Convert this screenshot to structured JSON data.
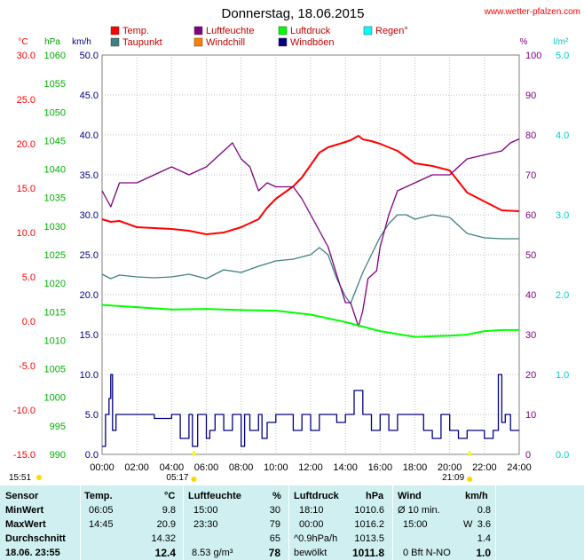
{
  "title": "Donnerstag, 18.06.2015",
  "source": "www.wetter-pfalzen.com",
  "legend": [
    {
      "name": "Temp.",
      "color": "#ff0000"
    },
    {
      "name": "Luftfeuchte",
      "color": "#800080"
    },
    {
      "name": "Luftdruck",
      "color": "#00ff00"
    },
    {
      "name": "Regen°",
      "color": "#00ffff"
    },
    {
      "name": "Taupunkt",
      "color": "#408080"
    },
    {
      "name": "Windchill",
      "color": "#ff8000"
    },
    {
      "name": "Windböen",
      "color": "#000080"
    }
  ],
  "axes": {
    "temp_unit": "°C",
    "pressure_unit": "hPa",
    "wind_unit": "km/h",
    "humidity_unit": "%",
    "rain_unit": "l/m²",
    "temp_ticks": [
      "30.0",
      "25.0",
      "20.0",
      "15.0",
      "10.0",
      "5.0",
      "0.0",
      "-5.0",
      "-10.0",
      "-15.0"
    ],
    "pressure_ticks": [
      "1060",
      "1055",
      "1050",
      "1045",
      "1040",
      "1035",
      "1030",
      "1025",
      "1020",
      "1015",
      "1010",
      "1005",
      "1000",
      "995",
      "990"
    ],
    "wind_ticks": [
      "50.0",
      "45.0",
      "40.0",
      "35.0",
      "30.0",
      "25.0",
      "20.0",
      "15.0",
      "10.0",
      "5.0",
      "0.0"
    ],
    "humidity_ticks": [
      "100",
      "90",
      "80",
      "70",
      "60",
      "50",
      "40",
      "30",
      "20",
      "10",
      "0"
    ],
    "rain_ticks": [
      "5.0",
      "4.0",
      "3.0",
      "2.0",
      "1.0",
      "0.0"
    ],
    "time_ticks": [
      "00:00",
      "02:00",
      "04:00",
      "06:00",
      "08:00",
      "10:00",
      "12:00",
      "14:00",
      "16:00",
      "18:00",
      "20:00",
      "22:00",
      "24:00"
    ],
    "sunrise": "05:17",
    "sunset": "21:09",
    "day_length": "15:51"
  },
  "chart_data": {
    "type": "line",
    "x_unit": "hour",
    "ylim_temp": [
      -15,
      30
    ],
    "ylim_pressure": [
      990,
      1060
    ],
    "ylim_wind": [
      0,
      50
    ],
    "ylim_humidity": [
      0,
      100
    ],
    "ylim_rain": [
      0,
      5
    ],
    "series": [
      {
        "name": "Temp.",
        "axis": "temp",
        "color": "#ff0000",
        "x": [
          0,
          0.5,
          1,
          2,
          3,
          4,
          5,
          6,
          7,
          8,
          9,
          9.5,
          10,
          11,
          11.5,
          12,
          12.5,
          13,
          13.5,
          14,
          14.3,
          14.75,
          15,
          15.5,
          16,
          17,
          18,
          19,
          20,
          21,
          22,
          23,
          24
        ],
        "y": [
          11.5,
          11.2,
          11.3,
          10.6,
          10.5,
          10.4,
          10.2,
          9.8,
          10.0,
          10.6,
          11.5,
          12.8,
          13.8,
          15.2,
          16.2,
          17.6,
          19.0,
          19.6,
          19.9,
          20.2,
          20.4,
          20.9,
          20.5,
          20.3,
          20.0,
          19.2,
          17.8,
          17.5,
          17.0,
          14.5,
          13.5,
          12.5,
          12.4
        ]
      },
      {
        "name": "Taupunkt",
        "axis": "temp",
        "color": "#408080",
        "x": [
          0,
          0.5,
          1,
          2,
          3,
          4,
          5,
          6,
          7,
          8,
          9,
          10,
          11,
          12,
          12.5,
          13,
          13.5,
          14,
          14.3,
          14.6,
          15,
          15.5,
          16,
          16.5,
          17,
          17.5,
          18,
          19,
          20,
          21,
          22,
          23,
          24
        ],
        "y": [
          5.3,
          4.8,
          5.2,
          5.0,
          4.9,
          5.0,
          5.3,
          4.8,
          5.8,
          5.5,
          6.2,
          6.8,
          7.0,
          7.5,
          8.3,
          7.5,
          4.8,
          2.8,
          2.0,
          3.5,
          5.5,
          7.5,
          9.5,
          11.0,
          12.0,
          12.0,
          11.5,
          12.0,
          11.7,
          9.9,
          9.4,
          9.3,
          9.3
        ]
      },
      {
        "name": "Luftfeuchte",
        "axis": "humidity",
        "color": "#800080",
        "x": [
          0,
          0.5,
          1,
          2,
          3,
          4,
          5,
          6,
          7,
          7.5,
          8,
          8.5,
          9,
          9.5,
          10,
          11,
          11.5,
          12,
          12.5,
          13,
          13.5,
          14,
          14.3,
          14.75,
          15,
          15.3,
          15.8,
          16,
          16.5,
          17,
          18,
          19,
          20,
          21,
          22,
          23,
          23.5,
          24
        ],
        "y": [
          66,
          62,
          68,
          68,
          70,
          72,
          70,
          72,
          76,
          78,
          74,
          72,
          66,
          68,
          67,
          67,
          64,
          60,
          56,
          52,
          45,
          38,
          38,
          32,
          36,
          44,
          46,
          52,
          60,
          66,
          68,
          70,
          70,
          74,
          75,
          76,
          78,
          79
        ]
      },
      {
        "name": "Luftdruck",
        "axis": "pressure",
        "color": "#00ff00",
        "x": [
          0,
          2,
          4,
          6,
          8,
          10,
          12,
          14,
          16,
          18,
          18.2,
          19,
          20,
          21,
          22,
          23,
          24
        ],
        "y": [
          1016.2,
          1015.8,
          1015.4,
          1015.5,
          1015.3,
          1015.2,
          1014.5,
          1013.2,
          1011.6,
          1010.6,
          1010.6,
          1010.7,
          1010.8,
          1011.0,
          1011.6,
          1011.8,
          1011.8
        ]
      },
      {
        "name": "Windböen",
        "axis": "wind",
        "color": "#000080",
        "x": [
          0,
          0.2,
          0.4,
          0.5,
          0.6,
          0.8,
          1,
          1.5,
          2,
          3,
          4,
          4.5,
          5,
          5.2,
          5.5,
          6,
          6.2,
          6.5,
          7,
          7.5,
          8,
          8.2,
          8.5,
          9,
          9.2,
          9.5,
          10,
          10.5,
          11,
          11.5,
          12,
          12.5,
          13,
          13.5,
          14,
          14.5,
          15,
          15.5,
          16,
          16.5,
          17,
          17.5,
          18,
          18.5,
          19,
          19.5,
          20,
          20.5,
          21,
          21.5,
          22,
          22.5,
          22.8,
          23,
          23.2,
          23.5,
          24
        ],
        "y": [
          1,
          5,
          7,
          10,
          3,
          5,
          5,
          5,
          5,
          4.5,
          5,
          2,
          5,
          1,
          5,
          2,
          3,
          5,
          3,
          5,
          1,
          5,
          3,
          5,
          2,
          4,
          5,
          5,
          3,
          5,
          3,
          5,
          5,
          4,
          5,
          8,
          5,
          3,
          5,
          3,
          5,
          5,
          5,
          3,
          2,
          5,
          3,
          2,
          3,
          3,
          2,
          3,
          10,
          4,
          5,
          3,
          3
        ]
      }
    ]
  },
  "stats": {
    "header": {
      "sensor": "Sensor",
      "temp": "Temp.",
      "temp_unit": "°C",
      "hum": "Luftfeuchte",
      "hum_unit": "%",
      "press": "Luftdruck",
      "press_unit": "hPa",
      "wind": "Wind",
      "wind_unit": "km/h"
    },
    "min": {
      "label": "MinWert",
      "temp_time": "06:05",
      "temp_val": "9.8",
      "hum_time": "15:00",
      "hum_val": "30",
      "press_time": "18:10",
      "press_val": "1010.6",
      "wind_label": "Ø 10 min.",
      "wind_val": "0.8"
    },
    "max": {
      "label": "MaxWert",
      "temp_time": "14:45",
      "temp_val": "20.9",
      "hum_time": "23:30",
      "hum_val": "79",
      "press_time": "00:00",
      "press_val": "1016.2",
      "wind_label": "15:00",
      "wind_dir": "W",
      "wind_val": "3.6"
    },
    "avg": {
      "label": "Durchschnitt",
      "temp_val": "14.32",
      "hum_val": "65",
      "press_trend": "^0.9hPa/h",
      "press_val": "1013.5",
      "wind_val": "1.4"
    },
    "current": {
      "label": "18.06. 23:55",
      "temp_val": "12.4",
      "dewpoint": "8.53 g/m³",
      "hum_val": "78",
      "cond": "bewölkt",
      "press_val": "1011.8",
      "wind_text": "0 Bft N-NO",
      "wind_val": "1.0"
    }
  }
}
